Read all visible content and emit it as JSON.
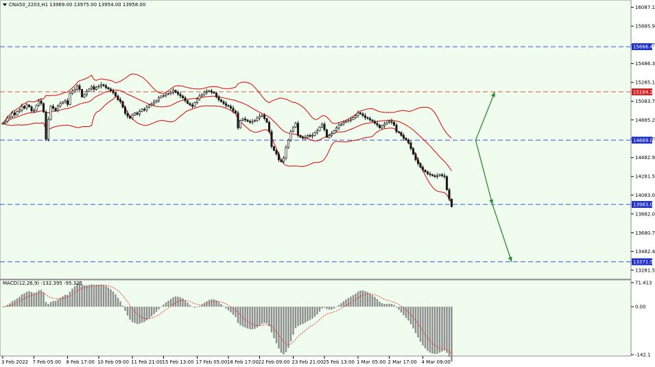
{
  "header": {
    "symbol_text": "CNA50_2203,H1",
    "ohlc_text": "13969.00 13975.00 13954.00 13958.00"
  },
  "macd": {
    "label": "MACD(12,26,9) -132.395 -95.325",
    "scale_labels": [
      "71.413",
      "0.00",
      "-142.1"
    ],
    "ylim": [
      -142.1,
      71.413
    ]
  },
  "colors": {
    "background": "#f0fcee",
    "candle": "#1a1a1a",
    "bollinger": "#e00000",
    "hline_blue": "#3355ee",
    "hline_red": "#e05050",
    "arrow": "#2e8b2e",
    "macd_hist": "#8c8c8c",
    "macd_signal": "#e03030",
    "label_blue_bg": "#1e2fd0",
    "label_red_bg": "#d92020"
  },
  "chart_data": {
    "type": "candlestick",
    "ylim": [
      13200,
      16150
    ],
    "price_ticks": [
      16087.15,
      15885.95,
      15686.75,
      15486.3,
      15285.1,
      15083.7,
      14885.25,
      14684.05,
      14482.9,
      14281.55,
      14083.0,
      13882.0,
      13680.7,
      13482.45,
      13281.55
    ],
    "x_ticks": [
      "3 Feb 2022",
      "7 Feb 05:00",
      "8 Feb 17:00",
      "10 Feb 09:00",
      "11 Feb 21:00",
      "15 Feb 13:00",
      "17 Feb 05:00",
      "18 Feb 17:00",
      "22 Feb 09:00",
      "23 Feb 21:00",
      "25 Feb 13:00",
      "1 Mar 05:00",
      "2 Mar 17:00",
      "4 Mar 09:00"
    ],
    "closes": [
      14850,
      14870,
      14905,
      14920,
      14960,
      14940,
      14975,
      14990,
      15030,
      15010,
      15045,
      15025,
      14980,
      14985,
      15040,
      15090,
      15060,
      14970,
      14680,
      14890,
      15030,
      15010,
      14980,
      15035,
      15060,
      15075,
      15090,
      15050,
      15170,
      15195,
      15210,
      15250,
      15210,
      15130,
      15155,
      15190,
      15215,
      15240,
      15210,
      15235,
      15245,
      15260,
      15250,
      15230,
      15215,
      15195,
      15175,
      15140,
      15100,
      15080,
      15020,
      14955,
      14925,
      14905,
      14935,
      14960,
      14945,
      14975,
      15000,
      14990,
      15020,
      15045,
      15055,
      15075,
      15090,
      15120,
      15140,
      15145,
      15160,
      15165,
      15180,
      15200,
      15180,
      15160,
      15140,
      15120,
      15090,
      15060,
      15045,
      15030,
      15070,
      15110,
      15140,
      15155,
      15180,
      15190,
      15195,
      15180,
      15170,
      15130,
      15100,
      15080,
      15060,
      15040,
      15030,
      15010,
      14980,
      14960,
      14800,
      14880,
      14895,
      14885,
      14870,
      14860,
      14870,
      14880,
      14905,
      14925,
      14935,
      14900,
      14860,
      14760,
      14600,
      14560,
      14520,
      14460,
      14440,
      14480,
      14590,
      14670,
      14760,
      14810,
      14850,
      14720,
      14700,
      14690,
      14700,
      14720,
      14710,
      14720,
      14750,
      14770,
      14810,
      14840,
      14780,
      14700,
      14720,
      14740,
      14770,
      14800,
      14830,
      14840,
      14860,
      14870,
      14880,
      14890,
      14910,
      14930,
      14960,
      14950,
      14930,
      14910,
      14900,
      14885,
      14870,
      14850,
      14830,
      14800,
      14820,
      14840,
      14860,
      14870,
      14860,
      14830,
      14760,
      14750,
      14720,
      14690,
      14670,
      14640,
      14580,
      14520,
      14460,
      14420,
      14380,
      14350,
      14330,
      14310,
      14300,
      14290,
      14280,
      14290,
      14300,
      14290,
      14280,
      14140,
      14040,
      13958
    ],
    "hlines": [
      {
        "price": 15666.41,
        "label": "15666.41",
        "style": "blue"
      },
      {
        "price": 15184.26,
        "label": "15184.26",
        "style": "red"
      },
      {
        "price": 14669.06,
        "label": "14669.06",
        "style": "blue"
      },
      {
        "price": 13983.0,
        "label": "13983.00",
        "style": "blue"
      },
      {
        "price": 13371.51,
        "label": "13371.51",
        "style": "blue"
      }
    ],
    "projection_arrows": [
      {
        "from_bar": 197,
        "from": 14669,
        "to_bar": 205,
        "to": 15184
      },
      {
        "from_bar": 197,
        "from": 14669,
        "to_bar": 204,
        "to": 13983
      },
      {
        "from_bar": 204,
        "from": 13983,
        "to_bar": 212,
        "to": 13371
      }
    ]
  }
}
